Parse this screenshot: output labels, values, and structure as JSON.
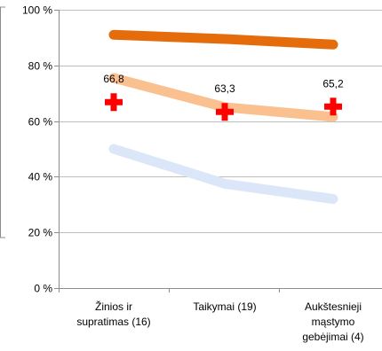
{
  "chart_data": {
    "type": "line",
    "title": "",
    "xlabel": "",
    "ylabel": "",
    "categories": [
      [
        "Žinios ir",
        "supratimas (16)"
      ],
      [
        "Taikymai (19)"
      ],
      [
        "Aukštesnieji",
        "mąstymo",
        "gebėjimai (4)"
      ]
    ],
    "y_ticks": [
      "0 %",
      "20 %",
      "40 %",
      "60 %",
      "80 %",
      "100 %"
    ],
    "ylim": [
      0,
      100
    ],
    "grid": true,
    "legend": "none",
    "series": [
      {
        "values": [
          91,
          89.5,
          87.5
        ],
        "color": "#e46c0a"
      },
      {
        "values": [
          75.5,
          65,
          61.5
        ],
        "color": "#fac090"
      },
      {
        "values": [
          50,
          37.5,
          32
        ],
        "color": "#dbe7f8"
      },
      {
        "marker": "plus",
        "values": [
          66.8,
          63.3,
          65.2
        ],
        "labels": [
          "66,8",
          "63,3",
          "65,2"
        ],
        "color": "#ff0000"
      }
    ]
  }
}
